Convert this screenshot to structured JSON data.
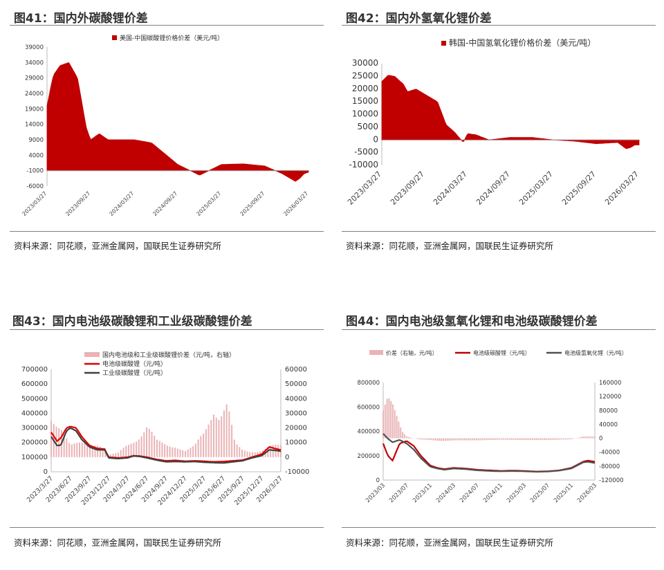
{
  "panels": [
    {
      "title": "图41：国内外碳酸锂价差",
      "source": "资料来源：同花顺，亚洲金属网，国联民生证券研究所",
      "chart_data": {
        "type": "area",
        "legend": [
          "美国-中国碳酸锂价格价差（美元/吨）"
        ],
        "legend_position": "top",
        "ylim": [
          -6000,
          39000
        ],
        "yticks": [
          "39000",
          "34000",
          "29000",
          "24000",
          "19000",
          "14000",
          "9000",
          "4000",
          "-1000",
          "-6000"
        ],
        "yticks_values": [
          39000,
          34000,
          29000,
          24000,
          19000,
          14000,
          9000,
          4000,
          -1000,
          -6000
        ],
        "xticks": [
          "2023/03/27",
          "2023/09/27",
          "2024/03/27",
          "2024/09/27",
          "2025/03/27",
          "2025/09/27",
          "2026/03/27"
        ],
        "x": [
          0,
          0.1,
          0.15,
          0.3,
          0.5,
          0.7,
          0.9,
          1.0,
          1.2,
          1.4,
          1.6,
          2.0,
          2.4,
          3.0,
          3.5,
          4.0,
          4.5,
          5.0,
          5.4,
          5.7,
          5.8,
          5.9,
          6.0
        ],
        "values": [
          20000,
          27000,
          30000,
          33000,
          34000,
          29000,
          13000,
          9000,
          11000,
          9000,
          9000,
          9000,
          8000,
          1000,
          -2500,
          1000,
          1200,
          500,
          -2000,
          -4500,
          -3500,
          -2000,
          -1500
        ],
        "grid": false,
        "color": "#c00000"
      }
    },
    {
      "title": "图42：国内外氢氧化锂价差",
      "source": "资料来源：同花顺，亚洲金属网，国联民生证券研究所",
      "chart_data": {
        "type": "area",
        "legend": [
          "韩国-中国氢氧化锂价格价差（美元/吨）"
        ],
        "legend_position": "top",
        "ylim": [
          -10000,
          30000
        ],
        "yticks": [
          "30000",
          "25000",
          "20000",
          "15000",
          "10000",
          "5000",
          "0",
          "-5000",
          "-10000"
        ],
        "yticks_values": [
          30000,
          25000,
          20000,
          15000,
          10000,
          5000,
          0,
          -5000,
          -10000
        ],
        "xticks": [
          "2023/03/27",
          "2023/09/27",
          "2024/03/27",
          "2024/09/27",
          "2025/03/27",
          "2025/09/27",
          "2026/03/27"
        ],
        "x": [
          0,
          0.15,
          0.3,
          0.5,
          0.6,
          0.8,
          1.0,
          1.3,
          1.5,
          1.7,
          1.9,
          2.0,
          2.2,
          2.5,
          3.0,
          3.5,
          4.0,
          4.5,
          5.0,
          5.5,
          5.7,
          5.8,
          5.9,
          6.0
        ],
        "values": [
          23000,
          25500,
          25000,
          22000,
          19000,
          20000,
          18000,
          15000,
          6000,
          3000,
          -1000,
          2500,
          2000,
          0,
          1000,
          1000,
          0,
          -500,
          -1500,
          -1000,
          -3500,
          -3000,
          -2000,
          -2000
        ],
        "grid": false,
        "color": "#c00000"
      }
    },
    {
      "title": "图43：国内电池级碳酸锂和工业级碳酸锂价差",
      "source": "资料来源：同花顺，亚洲金属网，国联民生证券研究所",
      "chart_data": {
        "type": "line",
        "legend": [
          "国内电池级和工业级碳酸锂价差（元/吨，右轴）",
          "电池级碳酸锂（元/吨）",
          "工业级碳酸锂（元/吨）"
        ],
        "legend_position": "top-left",
        "ylim": [
          0,
          700000
        ],
        "yticks": [
          "700000",
          "600000",
          "500000",
          "400000",
          "300000",
          "200000",
          "100000",
          "0"
        ],
        "yticks_values": [
          700000,
          600000,
          500000,
          400000,
          300000,
          200000,
          100000,
          0
        ],
        "y2lim": [
          -10000,
          60000
        ],
        "y2ticks": [
          "60000",
          "50000",
          "40000",
          "30000",
          "20000",
          "10000",
          "0",
          "-10000"
        ],
        "y2ticks_values": [
          60000,
          50000,
          40000,
          30000,
          20000,
          10000,
          0,
          -10000
        ],
        "xticks": [
          "2023/3/27",
          "2023/6/27",
          "2023/9/27",
          "2023/12/27",
          "2024/3/27",
          "2024/6/27",
          "2024/9/27",
          "2024/12/27",
          "2025/3/27",
          "2025/6/27",
          "2025/9/27",
          "2025/12/27",
          "2026/3/27"
        ],
        "x": [
          0,
          0.3,
          0.5,
          0.8,
          1.0,
          1.3,
          1.6,
          2.0,
          2.4,
          2.8,
          3.0,
          3.5,
          4.0,
          4.3,
          4.6,
          5.0,
          5.5,
          6.0,
          6.5,
          7.0,
          7.5,
          8.0,
          8.5,
          9.0,
          9.5,
          10.0,
          10.5,
          11.0,
          11.4,
          11.8,
          12.0
        ],
        "series": [
          {
            "name": "电池级碳酸锂（元/吨）",
            "color": "#e00000",
            "values": [
              270000,
              210000,
              230000,
              300000,
              310000,
              300000,
              240000,
              180000,
              160000,
              155000,
              100000,
              95000,
              100000,
              110000,
              108000,
              100000,
              85000,
              75000,
              78000,
              72000,
              75000,
              72000,
              68000,
              70000,
              75000,
              80000,
              100000,
              120000,
              170000,
              155000,
              150000
            ]
          },
          {
            "name": "工业级碳酸锂（元/吨）",
            "color": "#404040",
            "values": [
              240000,
              180000,
              180000,
              280000,
              300000,
              280000,
              220000,
              170000,
              150000,
              150000,
              95000,
              90000,
              95000,
              108000,
              105000,
              95000,
              80000,
              68000,
              70000,
              68000,
              70000,
              65000,
              62000,
              60000,
              68000,
              75000,
              95000,
              110000,
              150000,
              145000,
              140000
            ]
          }
        ],
        "bars": {
          "name": "国内电池级和工业级碳酸锂价差（元/吨，右轴）",
          "color": "#eab3b6",
          "x": [
            0,
            0.5,
            1.0,
            1.5,
            2.0,
            2.5,
            3.0,
            3.5,
            4.0,
            4.5,
            5.0,
            5.5,
            6.0,
            6.5,
            7.0,
            7.5,
            8.0,
            8.5,
            8.8,
            9.2,
            9.6,
            10.0,
            10.5,
            11.0,
            11.5,
            12.0
          ],
          "values": [
            30000,
            30000,
            10000,
            10000,
            10000,
            12000,
            2000,
            3000,
            10000,
            17000,
            25000,
            12000,
            10000,
            10000,
            5000,
            8000,
            20000,
            45000,
            35000,
            40000,
            10000,
            6000,
            5000,
            5000,
            8000,
            10000
          ]
        }
      }
    },
    {
      "title": "图44：国内电池级氢氧化锂和电池级碳酸锂价差",
      "source": "资料来源：同花顺，亚洲金属网，国联民生证券研究所",
      "chart_data": {
        "type": "line",
        "legend": [
          "价差（右轴，元/吨）",
          "电池级碳酸锂（元/吨）",
          "电池级氢氧化锂（元/吨）"
        ],
        "legend_position": "top",
        "ylim": [
          0,
          800000
        ],
        "yticks": [
          "800000",
          "600000",
          "400000",
          "200000",
          "0"
        ],
        "yticks_values": [
          800000,
          600000,
          400000,
          200000,
          0
        ],
        "y2lim": [
          -120000,
          160000
        ],
        "y2ticks": [
          "160000",
          "120000",
          "80000",
          "40000",
          "0",
          "-40000",
          "-80000",
          "-120000"
        ],
        "y2ticks_values": [
          160000,
          120000,
          80000,
          40000,
          0,
          -40000,
          -80000,
          -120000
        ],
        "xticks": [
          "2023/03",
          "2023/07",
          "2023/11",
          "2024/03",
          "2024/07",
          "2024/11",
          "2025/03",
          "2025/07",
          "2025/11",
          "2026/03"
        ],
        "x": [
          0,
          0.2,
          0.4,
          0.7,
          1.0,
          1.3,
          1.6,
          2.0,
          2.3,
          2.6,
          3.0,
          3.5,
          4.0,
          4.5,
          5.0,
          5.5,
          6.0,
          6.5,
          7.0,
          7.5,
          8.0,
          8.5,
          8.7,
          9.0
        ],
        "series": [
          {
            "name": "电池级碳酸锂（元/吨）",
            "color": "#c00000",
            "values": [
              300000,
              200000,
              160000,
              300000,
              320000,
              280000,
              200000,
              120000,
              100000,
              90000,
              100000,
              95000,
              85000,
              80000,
              75000,
              78000,
              75000,
              70000,
              72000,
              80000,
              100000,
              150000,
              160000,
              150000
            ]
          },
          {
            "name": "电池级氢氧化锂（元/吨）",
            "color": "#505050",
            "values": [
              380000,
              340000,
              310000,
              330000,
              300000,
              250000,
              180000,
              110000,
              95000,
              85000,
              95000,
              90000,
              80000,
              75000,
              72000,
              74000,
              72000,
              68000,
              70000,
              78000,
              95000,
              145000,
              150000,
              140000
            ]
          }
        ],
        "bars": {
          "name": "价差（右轴，元/吨）",
          "color": "#eab3b6",
          "x": [
            0,
            0.2,
            0.4,
            0.6,
            0.8,
            1.0,
            1.5,
            2.0,
            2.5,
            3.0,
            4.0,
            5.0,
            6.0,
            7.0,
            8.0,
            8.5,
            9.0
          ],
          "values": [
            80000,
            120000,
            100000,
            60000,
            20000,
            5000,
            -3000,
            -5000,
            -8000,
            -6000,
            -6000,
            -4000,
            -5000,
            -5000,
            -3000,
            5000,
            5000
          ]
        }
      }
    }
  ]
}
